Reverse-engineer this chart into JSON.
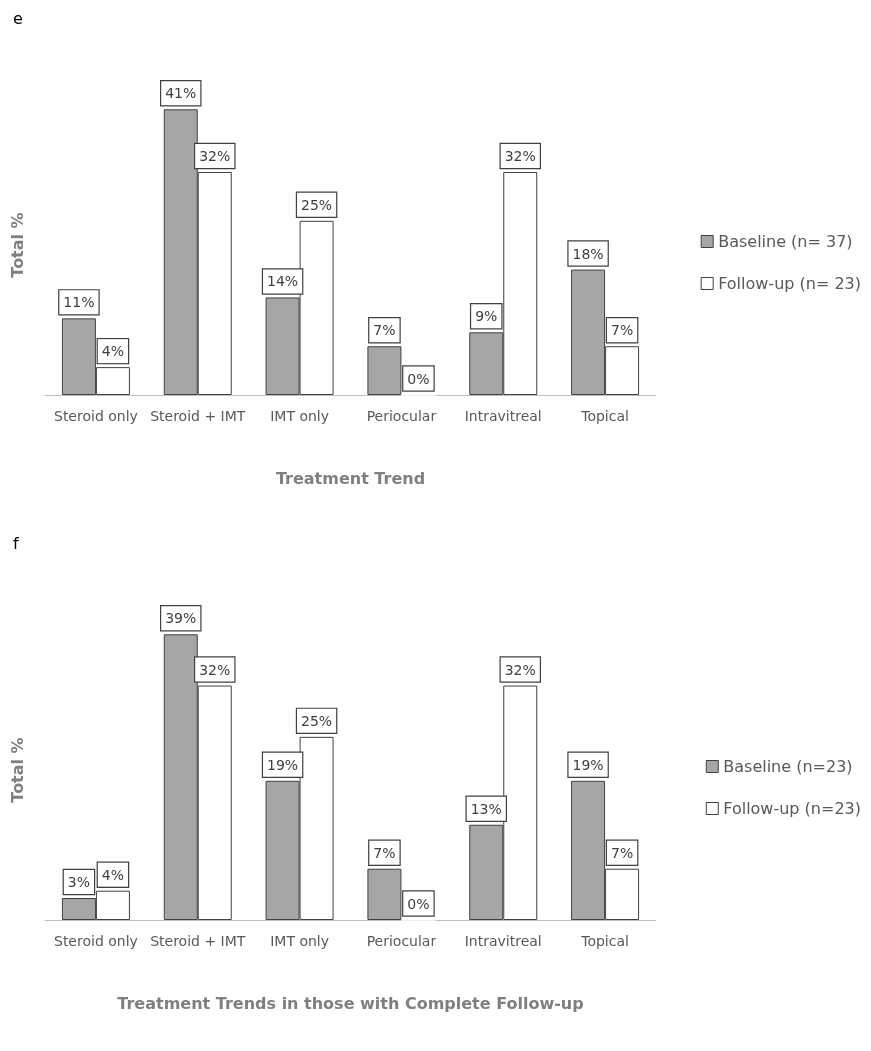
{
  "chart_data": [
    {
      "type": "bar",
      "title": "e",
      "xlabel": "Treatment Trend",
      "ylabel": "Total %",
      "legend": "right",
      "categories": [
        "Steroid only",
        "Steroid + IMT",
        "IMT only",
        "Periocular",
        "Intravitreal",
        "Topical"
      ],
      "series": [
        {
          "name": "Baseline (n= 37)",
          "color": "#a6a6a6",
          "values": [
            11,
            41,
            14,
            7,
            9,
            18
          ],
          "value_labels": [
            "11%",
            "41%",
            "14%",
            "7%",
            "9%",
            "18%"
          ]
        },
        {
          "name": "Follow-up (n= 23)",
          "color": "#ffffff",
          "values": [
            4,
            32,
            25,
            0,
            32,
            7
          ],
          "value_labels": [
            "4%",
            "32%",
            "25%",
            "0%",
            "32%",
            "7%"
          ]
        }
      ]
    },
    {
      "type": "bar",
      "title": "f",
      "xlabel": "Treatment Trends in those with Complete Follow-up",
      "ylabel": "Total %",
      "legend": "right",
      "categories": [
        "Steroid only",
        "Steroid + IMT",
        "IMT only",
        "Periocular",
        "Intravitreal",
        "Topical"
      ],
      "series": [
        {
          "name": "Baseline (n=23)",
          "color": "#a6a6a6",
          "values": [
            3,
            39,
            19,
            7,
            13,
            19
          ],
          "value_labels": [
            "3%",
            "39%",
            "19%",
            "7%",
            "13%",
            "19%"
          ]
        },
        {
          "name": "Follow-up (n=23)",
          "color": "#ffffff",
          "values": [
            4,
            32,
            25,
            0,
            32,
            7
          ],
          "value_labels": [
            "4%",
            "32%",
            "25%",
            "0%",
            "32%",
            "7%"
          ]
        }
      ]
    }
  ]
}
